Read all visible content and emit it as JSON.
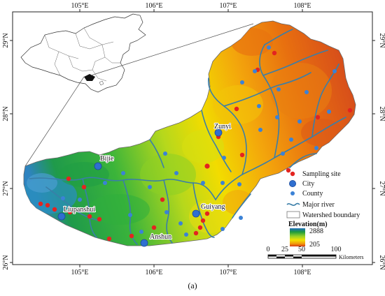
{
  "map": {
    "caption": "(a)",
    "lon_ticks": [
      "105°E",
      "106°E",
      "107°E",
      "108°E"
    ],
    "lat_ticks": [
      "29°N",
      "28°N",
      "27°N",
      "26°N"
    ],
    "cities": [
      "Bijie",
      "Zunyi",
      "Liupanshui",
      "Guiyang",
      "Anshun"
    ]
  },
  "legend": {
    "sampling_site": "Sampling site",
    "city": "City",
    "county": "County",
    "major_river": "Major river",
    "watershed_boundary": "Watershed boundary",
    "elevation_title": "Elevation(m)",
    "elevation_max": "2888",
    "elevation_min": "205",
    "scale_ticks": [
      "0",
      "25",
      "50",
      "100"
    ],
    "scale_unit": "Kilometers"
  },
  "colors": {
    "sampling_site": "#e32420",
    "city": "#2f6fd0",
    "county": "#3b82d6",
    "river": "#3a7ea8",
    "elev_high": "#1e8a3a",
    "elev_mid": "#f2e200",
    "elev_low": "#d63a12"
  }
}
